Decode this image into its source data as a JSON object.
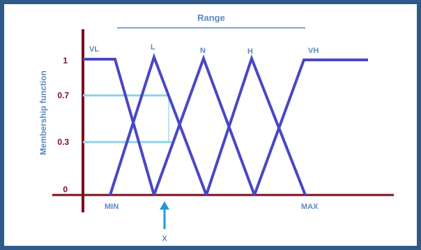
{
  "diagram": {
    "title": "Range",
    "ylabel": "Membership function",
    "y_ticks": [
      "1",
      "0.7",
      "0.3",
      "0"
    ],
    "x_markers": {
      "min": "MIN",
      "max": "MAX",
      "x": "X"
    },
    "sets": [
      "VL",
      "L",
      "N",
      "H",
      "VH"
    ],
    "membership_at_x": [
      0.7,
      0.3
    ],
    "colors": {
      "frame": "#2e5a8a",
      "axis": "#7a0f1e",
      "membership_lines": "#4a47c4",
      "range_line": "#7aa6d6",
      "x_projection": "#8fd0ea",
      "x_arrow": "#1f9ad6",
      "labels_blue": "#5b89c2",
      "tick_labels": "#7a0f1e"
    }
  }
}
